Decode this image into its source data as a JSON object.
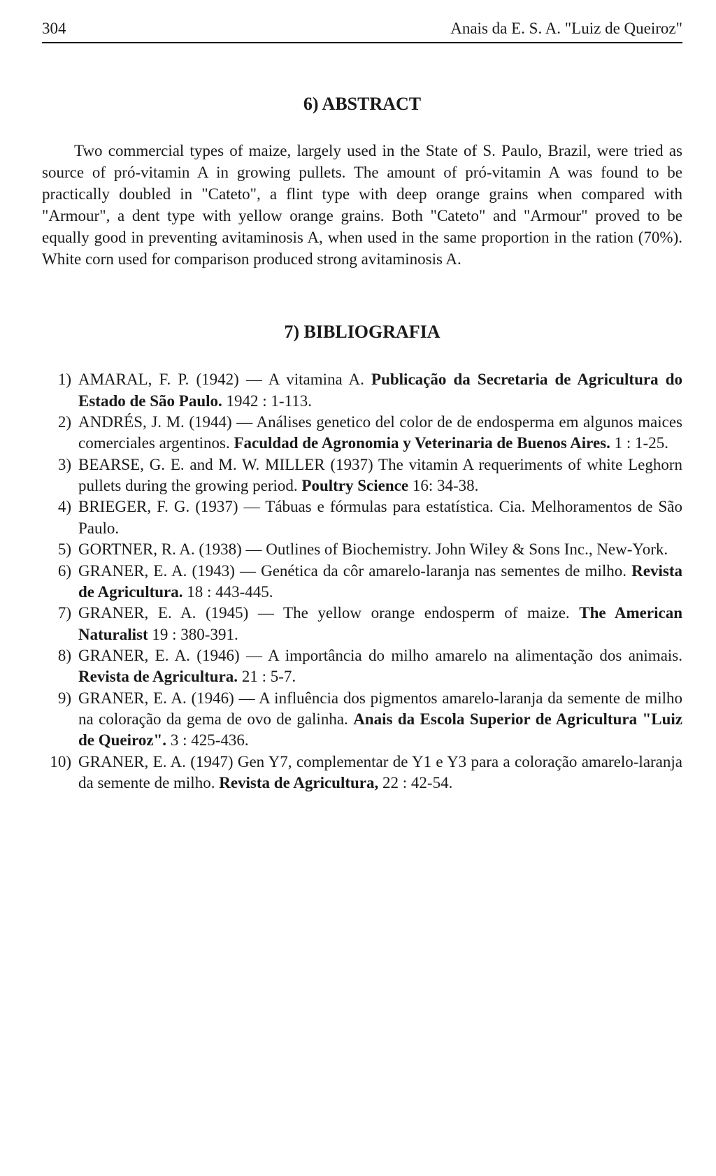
{
  "header": {
    "page_number": "304",
    "running_title": "Anais da E. S. A. \"Luiz de Queiroz\""
  },
  "abstract": {
    "heading": "6) ABSTRACT",
    "body_html": "<span class=\"indent\"></span>Two commercial types of maize, largely used in the State of S. Paulo, Brazil, were tried as source of pró-vitamin A in growing pullets. The amount of pró-vitamin A was found to be practically doubled in \"Cateto\", a flint type with deep orange grains when compared with \"Armour\", a dent type with yellow orange grains. Both \"Cateto\" and \"Armour\" proved to be equally good in preventing avitaminosis A, when used in the same proportion in the ration (70%). White corn used for comparison produced strong avitaminosis A."
  },
  "bibliography": {
    "heading": "7) BIBLIOGRAFIA",
    "items": [
      {
        "num": "1)",
        "html": "AMARAL, F. P. (1942) — A vitamina A. <span class=\"bold\">Publicação da Secretaria de Agricultura do Estado de São Paulo.</span> 1942 : 1-113."
      },
      {
        "num": "2)",
        "html": "ANDRÉS, J. M. (1944) — Análises genetico del color de de endosperma em algunos maices comerciales argentinos. <span class=\"bold\">Faculdad de Agronomia y Veterinaria de Buenos Aires.</span> 1 : 1-25."
      },
      {
        "num": "3)",
        "html": "BEARSE, G. E. and M. W. MILLER (1937) The vitamin A requeriments of white Leghorn pullets during the growing period. <span class=\"bold\">Poultry Science</span> 16: 34-38."
      },
      {
        "num": "4)",
        "html": "BRIEGER, F. G. (1937) — Tábuas e fórmulas para estatística. Cia. Melhoramentos de São Paulo."
      },
      {
        "num": "5)",
        "html": "GORTNER, R. A. (1938) — Outlines of Biochemistry. John Wiley & Sons Inc., New-York."
      },
      {
        "num": "6)",
        "html": "GRANER, E. A. (1943) — Genética da côr amarelo-laranja nas sementes de milho. <span class=\"bold\">Revista de Agricultura.</span> 18 : 443-445."
      },
      {
        "num": "7)",
        "html": "GRANER, E. A. (1945) — The yellow orange endosperm of maize. <span class=\"bold\">The American Naturalist</span> 19 : 380-391."
      },
      {
        "num": "8)",
        "html": "GRANER, E. A. (1946) — A importância do milho amarelo na alimentação dos animais. <span class=\"bold\">Revista de Agricultura.</span> 21 : 5-7."
      },
      {
        "num": "9)",
        "html": "GRANER, E. A. (1946) — A influência dos pigmentos amarelo-laranja da semente de milho na coloração da gema de ovo de galinha. <span class=\"bold\">Anais da Escola Superior de Agricultura \"Luiz de Queiroz\".</span> 3 : 425-436."
      },
      {
        "num": "10)",
        "html": "GRANER, E. A. (1947) Gen Y7, complementar de Y1 e Y3 para a coloração amarelo-laranja da semente de milho. <span class=\"bold\">Revista de Agricultura,</span> 22 : 42-54."
      }
    ]
  }
}
